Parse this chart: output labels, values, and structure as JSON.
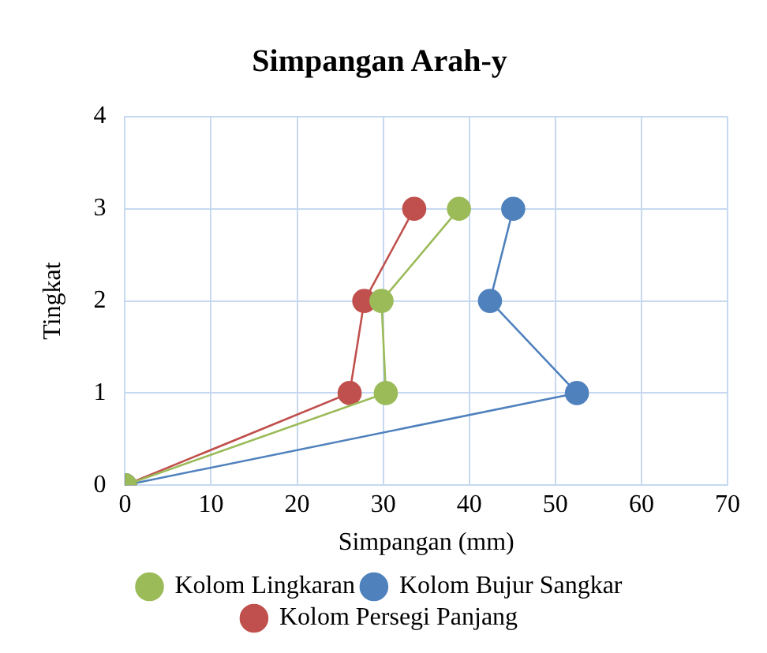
{
  "chart_data": {
    "type": "line",
    "title": "Simpangan Arah-y",
    "xlabel": "Simpangan (mm)",
    "ylabel": "Tingkat",
    "xlim": [
      0,
      70
    ],
    "xticks": [
      0,
      10,
      20,
      30,
      40,
      50,
      60,
      70
    ],
    "ylim": [
      0,
      4
    ],
    "yticks": [
      0,
      1,
      2,
      3,
      4
    ],
    "grid": true,
    "legend": "bottom",
    "marker": "circle",
    "line_style": "solid",
    "series": [
      {
        "name": "Kolom Lingkaran",
        "color": "#9bbb59",
        "x": [
          0,
          30.3,
          29.8,
          38.8
        ],
        "values": [
          0,
          1,
          2,
          3
        ]
      },
      {
        "name": "Kolom Bujur Sangkar",
        "color": "#4f81bd",
        "x": [
          0,
          52.5,
          42.4,
          45.1
        ],
        "values": [
          0,
          1,
          2,
          3
        ]
      },
      {
        "name": "Kolom Persegi Panjang",
        "color": "#c0504d",
        "x": [
          0,
          26.1,
          27.8,
          33.6
        ],
        "values": [
          0,
          1,
          2,
          3
        ]
      }
    ]
  }
}
